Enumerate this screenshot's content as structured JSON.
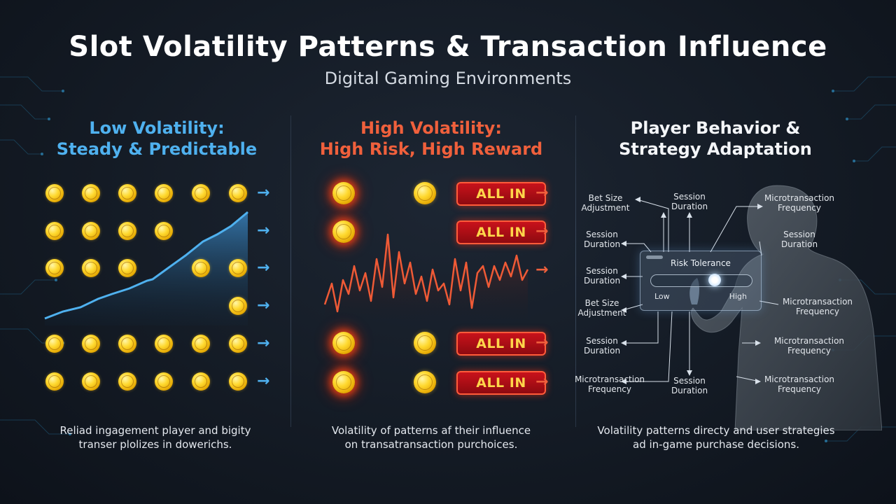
{
  "header": {
    "title": "Slot Volatility Patterns & Transaction Influence",
    "subtitle": "Digital Gaming Environments"
  },
  "low_volatility": {
    "heading_line1": "Low Volatility:",
    "heading_line2": "Steady & Predictable",
    "caption_line1": "Reliad ingagement player and bigity",
    "caption_line2": "transer plolizes in dowerichs.",
    "color": "#4fb1ef"
  },
  "high_volatility": {
    "heading_line1": "High Volatility:",
    "heading_line2": "High Risk, High Reward",
    "allin_label": "ALL IN",
    "caption_line1": "Volatility of patterns af their influence",
    "caption_line2": "on transatransaction purchoices.",
    "color": "#f0603c"
  },
  "player_behavior": {
    "heading_line1": "Player Behavior &",
    "heading_line2": "Strategy Adaptation",
    "caption_line1": "Volatility patterns directy and user strategies",
    "caption_line2": "ad in-game purchase decisions.",
    "risk_panel": {
      "title": "Risk Tolerance",
      "low": "Low",
      "high": "High",
      "level": 0.65
    },
    "labels": {
      "bet_size_top_1": "Bet Size",
      "bet_size_top_2": "Adjustment",
      "session_top_1": "Session",
      "session_top_2": "Duration",
      "micro_top_1": "Microtransaction",
      "micro_top_2": "Frequency",
      "session_l1_1": "Session",
      "session_l1_2": "Duration",
      "session_l2_1": "Session",
      "session_l2_2": "Duration",
      "bet_size_l_1": "Bet Size",
      "bet_size_l_2": "Adjustment",
      "session_l3_1": "Session",
      "session_l3_2": "Duration",
      "micro_l_1": "Microtransaction",
      "micro_l_2": "Frequency",
      "session_bottom_1": "Session",
      "session_bottom_2": "Duration",
      "session_r1_1": "Session",
      "session_r1_2": "Duration",
      "micro_r1_1": "Microtransaction",
      "micro_r1_2": "Frequency",
      "micro_r2_1": "Microtransaction",
      "micro_r2_2": "Frequency",
      "micro_r3_1": "Microtransaction",
      "micro_r3_2": "Frequency"
    }
  }
}
